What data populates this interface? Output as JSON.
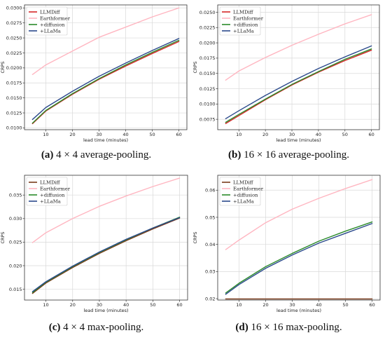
{
  "colors": {
    "LLMDiff": "#d62728",
    "Earthformer": "#ffb6c1",
    "+diffusion": "#2a8a2a",
    "+LLaMa": "#2b4a8c",
    "LLMDiff_dark": "#7a3a1a",
    "Earthformer_light": "#b8d8b8"
  },
  "captions": [
    {
      "label": "(a)",
      "text": " 4 × 4 average-pooling."
    },
    {
      "label": "(b)",
      "text": " 16 × 16 average-pooling."
    },
    {
      "label": "(c)",
      "text": " 4 × 4 max-pooling."
    },
    {
      "label": "(d)",
      "text": " 16 × 16 max-pooling."
    }
  ],
  "chart_data": [
    {
      "type": "line",
      "title": "",
      "xlabel": "lead time (minutes)",
      "ylabel": "CRPS",
      "xlim": [
        2,
        63
      ],
      "ylim": [
        0.0097,
        0.0305
      ],
      "xticks": [
        10,
        20,
        30,
        40,
        50,
        60
      ],
      "yticks": [
        0.01,
        0.0125,
        0.015,
        0.0175,
        0.02,
        0.0225,
        0.025,
        0.0275,
        0.03
      ],
      "ytick_labels": [
        "0.0100",
        "0.0125",
        "0.0150",
        "0.0175",
        "0.0200",
        "0.0225",
        "0.0250",
        "0.0275",
        "0.0300"
      ],
      "legend": "top-left",
      "x": [
        5,
        10,
        20,
        30,
        40,
        50,
        60
      ],
      "series": [
        {
          "name": "LLMDiff",
          "color_key": "LLMDiff",
          "values": [
            0.0107,
            0.0128,
            0.0156,
            0.0181,
            0.0203,
            0.0224,
            0.0244
          ]
        },
        {
          "name": "Earthformer",
          "color_key": "Earthformer",
          "values": [
            0.0189,
            0.0205,
            0.0228,
            0.0251,
            0.0268,
            0.0285,
            0.03
          ]
        },
        {
          "name": "+diffusion",
          "color_key": "+diffusion",
          "values": [
            0.0108,
            0.0129,
            0.0157,
            0.0182,
            0.0205,
            0.0226,
            0.0246
          ]
        },
        {
          "name": "+LLaMa",
          "color_key": "+LLaMa",
          "values": [
            0.0114,
            0.0134,
            0.0161,
            0.0186,
            0.0208,
            0.0229,
            0.0249
          ]
        }
      ]
    },
    {
      "type": "line",
      "title": "",
      "xlabel": "lead time (minutes)",
      "ylabel": "CRPS",
      "xlim": [
        2,
        63
      ],
      "ylim": [
        0.0058,
        0.0262
      ],
      "xticks": [
        10,
        20,
        30,
        40,
        50,
        60
      ],
      "yticks": [
        0.0075,
        0.01,
        0.0125,
        0.015,
        0.0175,
        0.02,
        0.0225,
        0.025
      ],
      "ytick_labels": [
        "0.0075",
        "0.0100",
        "0.0125",
        "0.0150",
        "0.0175",
        "0.0200",
        "0.0225",
        "0.0250"
      ],
      "legend": "top-left",
      "x": [
        5,
        10,
        20,
        30,
        40,
        50,
        60
      ],
      "series": [
        {
          "name": "LLMDiff",
          "color_key": "LLMDiff",
          "values": [
            0.0068,
            0.0081,
            0.0107,
            0.0131,
            0.0152,
            0.0171,
            0.0188
          ]
        },
        {
          "name": "Earthformer",
          "color_key": "Earthformer",
          "values": [
            0.0139,
            0.0154,
            0.0176,
            0.0196,
            0.0214,
            0.0231,
            0.0246
          ]
        },
        {
          "name": "+diffusion",
          "color_key": "+diffusion",
          "values": [
            0.007,
            0.0083,
            0.0108,
            0.0132,
            0.0153,
            0.0173,
            0.019
          ]
        },
        {
          "name": "+LLaMa",
          "color_key": "+LLaMa",
          "values": [
            0.0076,
            0.0089,
            0.0114,
            0.0137,
            0.0158,
            0.0177,
            0.0195
          ]
        }
      ]
    },
    {
      "type": "line",
      "title": "",
      "xlabel": "lead time (minutes)",
      "ylabel": "CRPS",
      "xlim": [
        2,
        63
      ],
      "ylim": [
        0.0127,
        0.0392
      ],
      "xticks": [
        10,
        20,
        30,
        40,
        50,
        60
      ],
      "yticks": [
        0.015,
        0.02,
        0.025,
        0.03,
        0.035
      ],
      "ytick_labels": [
        "0.015",
        "0.020",
        "0.025",
        "0.030",
        "0.035"
      ],
      "legend": "top-left",
      "x": [
        5,
        10,
        20,
        30,
        40,
        50,
        60
      ],
      "series": [
        {
          "name": "LLMDiff",
          "color_key": "LLMDiff_dark",
          "values": [
            0.0141,
            0.0163,
            0.0196,
            0.0226,
            0.0253,
            0.0278,
            0.0301
          ]
        },
        {
          "name": "Earthformer",
          "color_key": "Earthformer",
          "values": [
            0.0249,
            0.027,
            0.03,
            0.0326,
            0.0348,
            0.0368,
            0.0386
          ]
        },
        {
          "name": "+diffusion",
          "color_key": "+diffusion",
          "values": [
            0.0143,
            0.0165,
            0.0198,
            0.0228,
            0.0255,
            0.028,
            0.0303
          ]
        },
        {
          "name": "+LLaMa",
          "color_key": "+LLaMa",
          "values": [
            0.0145,
            0.0166,
            0.0199,
            0.0229,
            0.0256,
            0.028,
            0.0302
          ]
        }
      ]
    },
    {
      "type": "line",
      "title": "",
      "xlabel": "lead time (minutes)",
      "ylabel": "CRPS",
      "xlim": [
        2,
        63
      ],
      "ylim": [
        0.0195,
        0.0655
      ],
      "xticks": [
        10,
        20,
        30,
        40,
        50,
        60
      ],
      "yticks": [
        0.02,
        0.03,
        0.04,
        0.05,
        0.06
      ],
      "ytick_labels": [
        "0.02",
        "0.03",
        "0.04",
        "0.05",
        "0.06"
      ],
      "legend": "top-left",
      "x": [
        5,
        10,
        20,
        30,
        40,
        50,
        60
      ],
      "series": [
        {
          "name": "LLMDiff",
          "color_key": "LLMDiff_dark",
          "values": [
            0.0199,
            0.0199,
            0.0199,
            0.0199,
            0.0199,
            0.0199,
            0.0199
          ]
        },
        {
          "name": "Earthformer",
          "color_key": "Earthformer",
          "values": [
            0.0381,
            0.0416,
            0.048,
            0.053,
            0.057,
            0.0606,
            0.0639
          ]
        },
        {
          "name": "+diffusion",
          "color_key": "+diffusion",
          "values": [
            0.0221,
            0.0257,
            0.0318,
            0.0367,
            0.0412,
            0.0449,
            0.0483
          ]
        },
        {
          "name": "+LLaMa",
          "color_key": "+LLaMa",
          "values": [
            0.0216,
            0.0252,
            0.0312,
            0.0361,
            0.0405,
            0.0441,
            0.0477
          ]
        }
      ]
    }
  ]
}
